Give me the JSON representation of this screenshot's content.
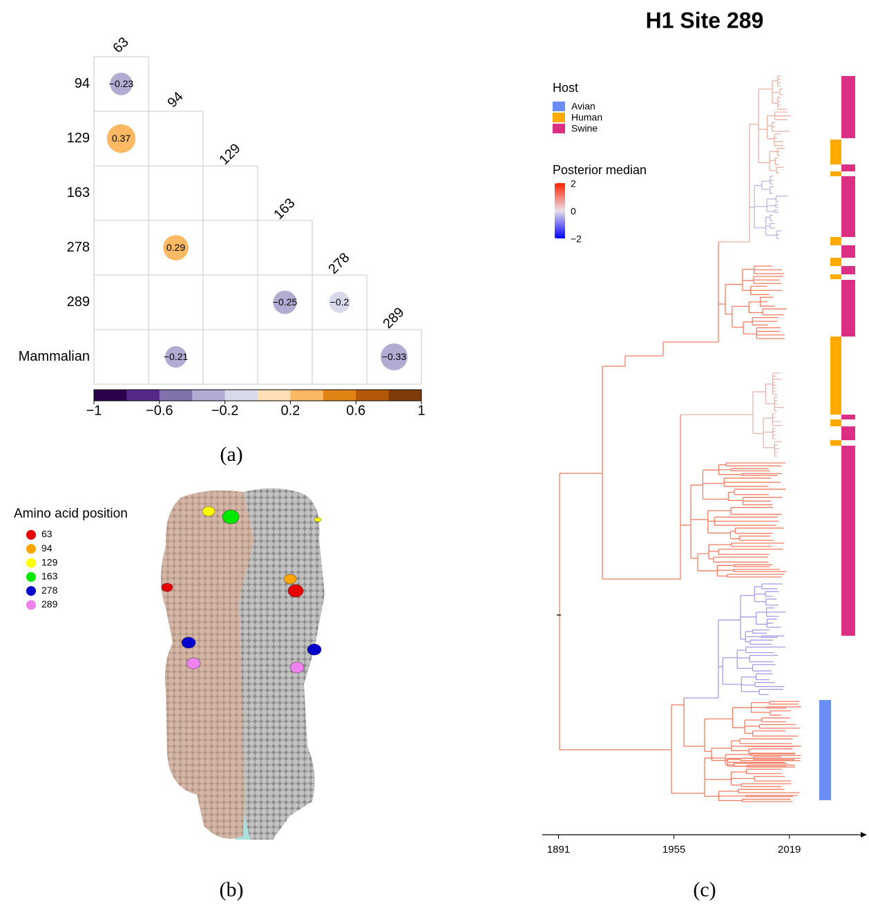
{
  "panel_a": {
    "caption": "(a)",
    "columns": [
      "63",
      "94",
      "129",
      "163",
      "278",
      "289"
    ],
    "rows": [
      "94",
      "129",
      "163",
      "278",
      "289",
      "Mammalian"
    ],
    "values": [
      [
        -0.23,
        null,
        null,
        null,
        null,
        null
      ],
      [
        0.37,
        null,
        null,
        null,
        null,
        null
      ],
      [
        null,
        null,
        null,
        null,
        null,
        null
      ],
      [
        null,
        0.29,
        null,
        null,
        null,
        null
      ],
      [
        null,
        null,
        null,
        -0.25,
        -0.2,
        null
      ],
      [
        null,
        -0.21,
        null,
        null,
        null,
        -0.33
      ]
    ],
    "value_labels": [
      [
        "−0.23",
        null,
        null,
        null,
        null,
        null
      ],
      [
        "0.37",
        null,
        null,
        null,
        null,
        null
      ],
      [
        null,
        null,
        null,
        null,
        null,
        null
      ],
      [
        null,
        "0.29",
        null,
        null,
        null,
        null
      ],
      [
        null,
        null,
        null,
        "−0.25",
        "−0.2",
        null
      ],
      [
        null,
        "−0.21",
        null,
        null,
        null,
        "−0.33"
      ]
    ],
    "colorbar": {
      "lim": [
        -1,
        1
      ],
      "colors": [
        "#2d004b",
        "#542788",
        "#8073ac",
        "#b2abd2",
        "#d8daeb",
        "#fee0b6",
        "#fdb863",
        "#e08214",
        "#b35806",
        "#7f3b08"
      ],
      "ticks": [
        {
          "value": -1,
          "label": "−1"
        },
        {
          "value": -0.6,
          "label": "−0.6"
        },
        {
          "value": -0.2,
          "label": "−0.2"
        },
        0.2,
        0.6,
        1
      ]
    }
  },
  "panel_b": {
    "caption": "(b)",
    "legend": {
      "title": "Amino acid position",
      "items": [
        {
          "name": "63",
          "color": "#e80000"
        },
        {
          "name": "94",
          "color": "#ffa500"
        },
        {
          "name": "129",
          "color": "#ffff00"
        },
        {
          "name": "163",
          "color": "#00e800"
        },
        {
          "name": "278",
          "color": "#0000cc"
        },
        {
          "name": "289",
          "color": "#ee82ee"
        }
      ]
    }
  },
  "panel_c": {
    "caption": "(c)",
    "title": "H1 Site 289",
    "host_legend": {
      "title": "Host",
      "items": [
        {
          "name": "Avian",
          "color": "#6a8ef5"
        },
        {
          "name": "Human",
          "color": "#ffaa00"
        },
        {
          "name": "Swine",
          "color": "#db2f83"
        }
      ]
    },
    "posterior_legend": {
      "title": "Posterior median",
      "lim": [
        -2,
        2
      ],
      "ticks": [
        2,
        0,
        {
          "value": -2,
          "label": "−2"
        }
      ]
    },
    "xlim": [
      1882,
      2062
    ],
    "xticks": [
      1891,
      1955,
      2019
    ]
  }
}
